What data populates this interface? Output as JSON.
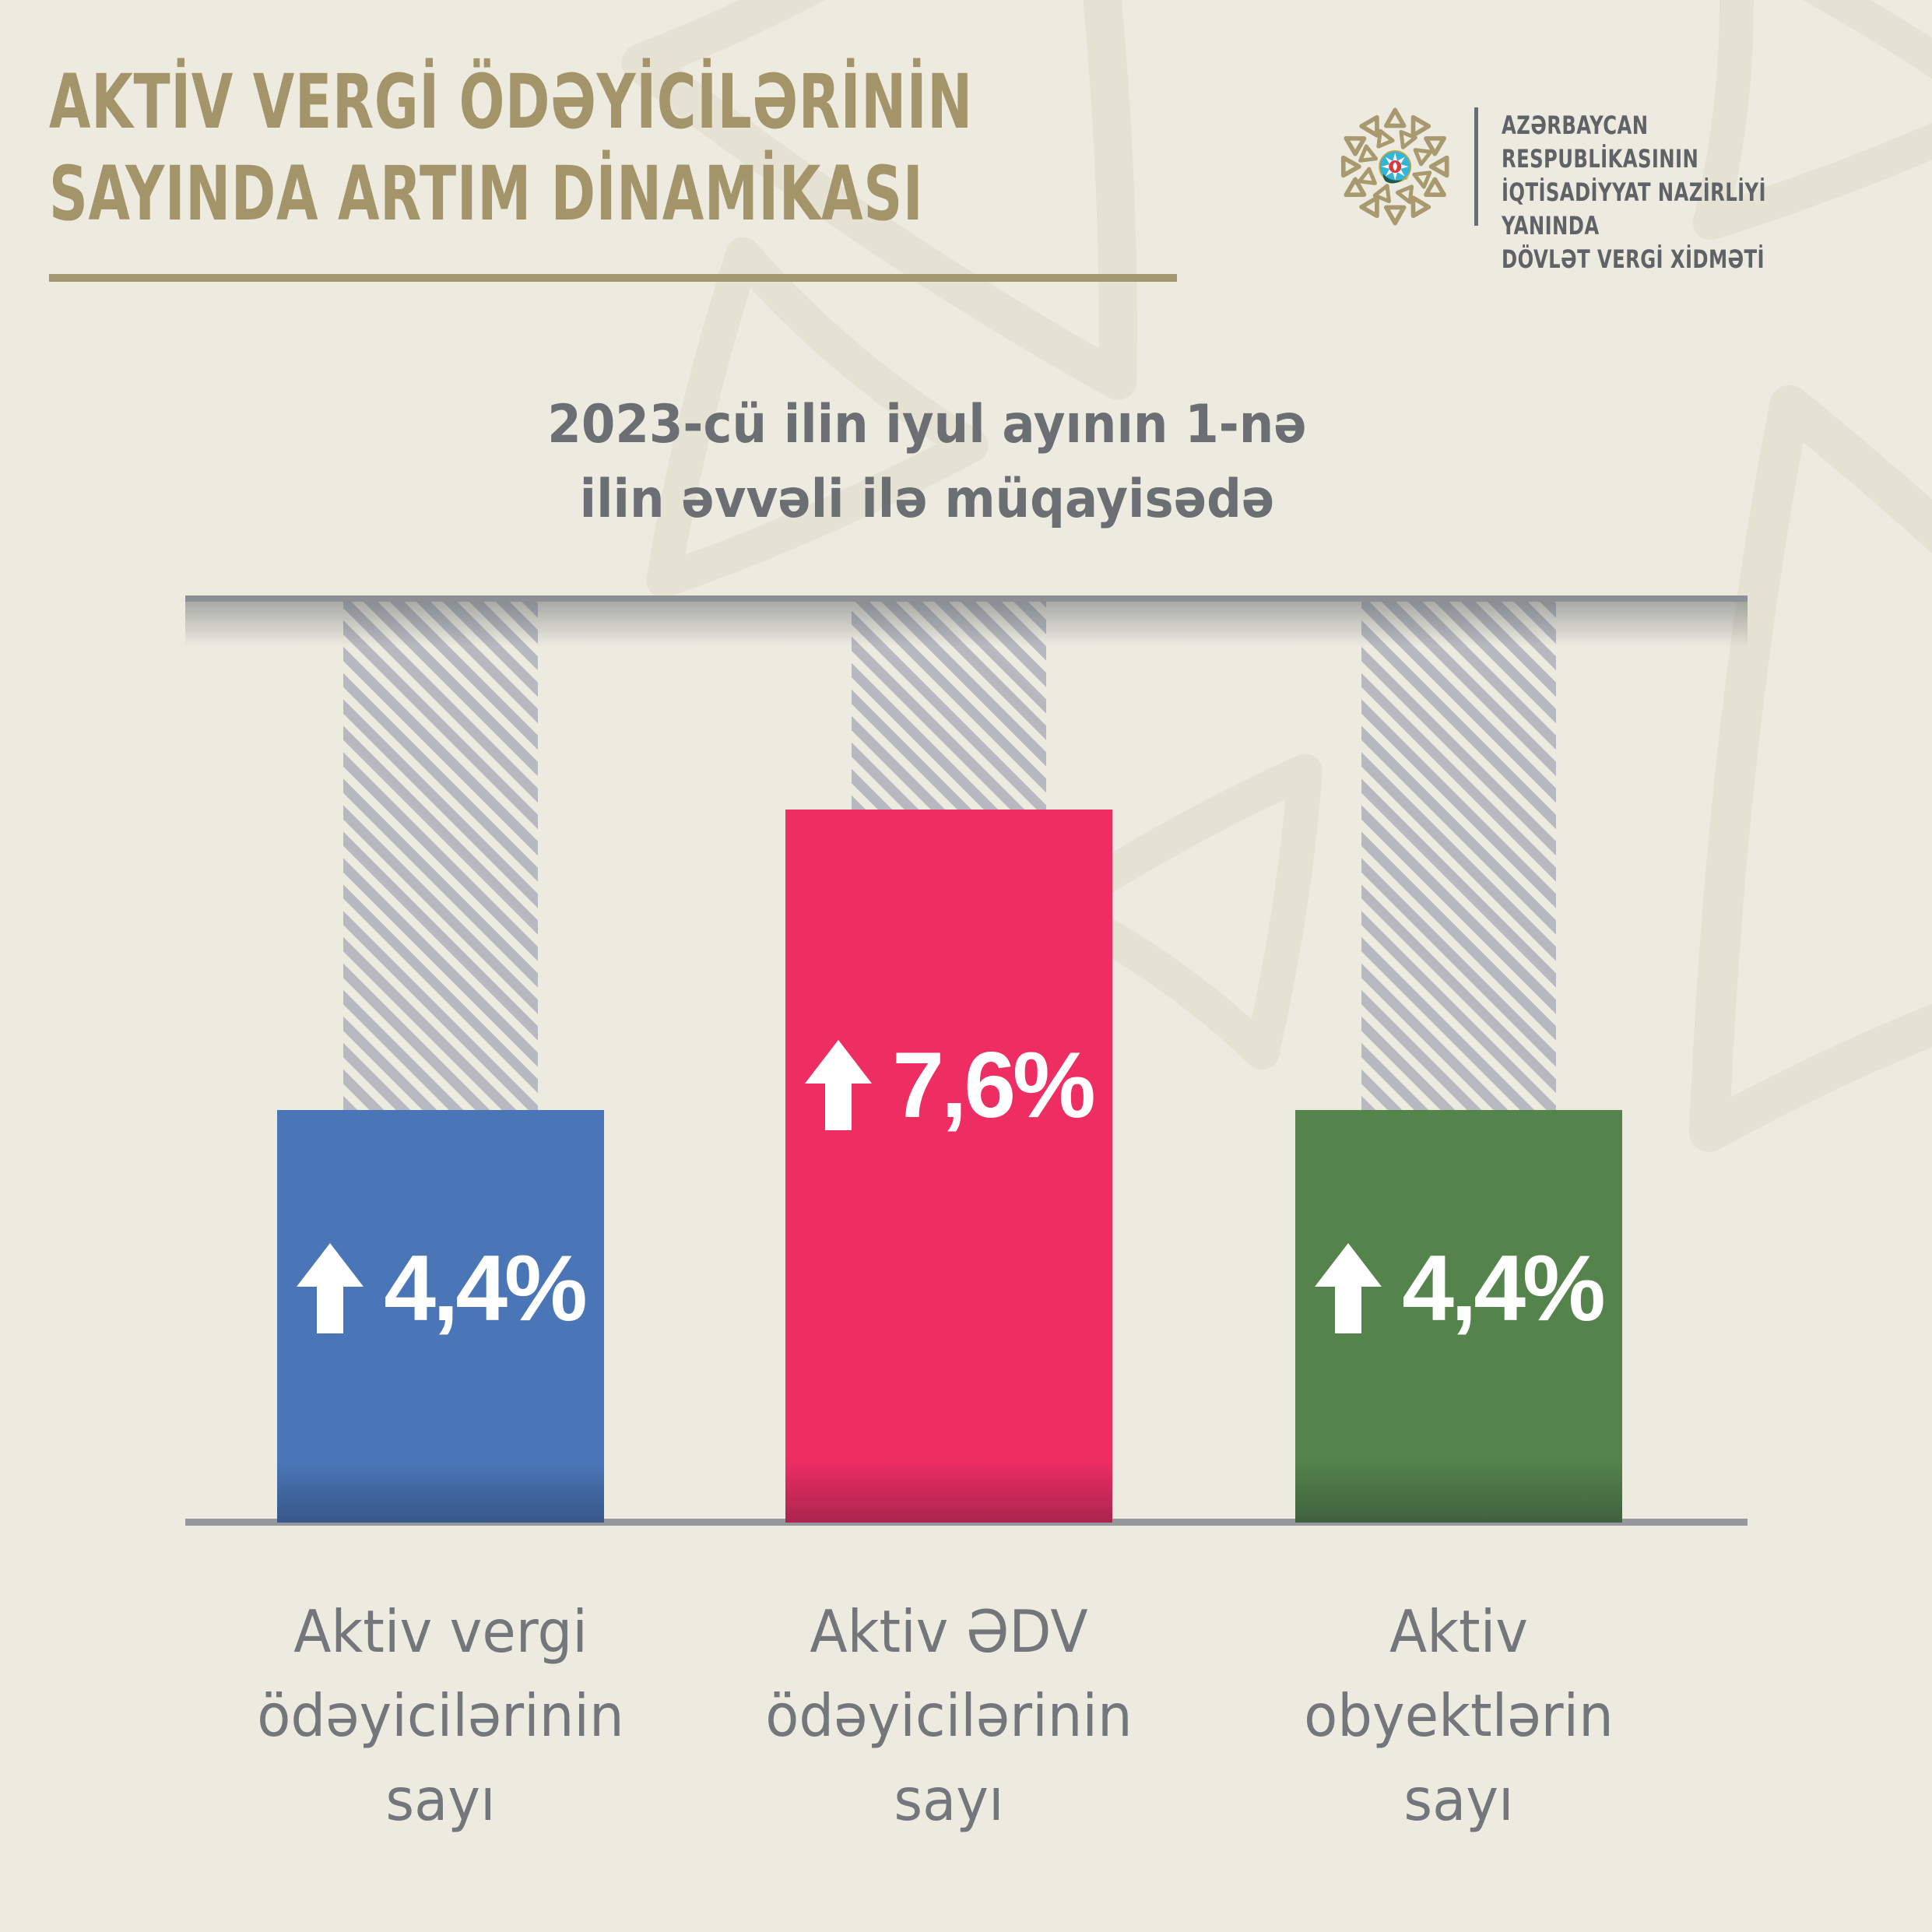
{
  "page": {
    "background": "#edebe0",
    "ornament_color": "#e5e2d4"
  },
  "header": {
    "title": "AKTİV VERGİ ÖDƏYİCİLƏRİNİN\nSAYINDA ARTIM DİNAMİKASI",
    "title_color": "#a39469",
    "brand_lines": "AZƏRBAYCAN RESPUBLİKASININ\nİQTİSADİYYAT NAZİRLİYİ YANINDA\nDÖVLƏT VERGİ XİDMƏTİ"
  },
  "subtitle": "2023-cü ilin iyul ayının 1-nə\nilin əvvəli ilə müqayisədə",
  "chart_data": {
    "type": "bar",
    "title": "AKTİV VERGİ ÖDƏYİCİLƏRİNİN SAYINDA ARTIM DİNAMİKASI",
    "subtitle": "2023-cü ilin iyul ayının 1-nə ilin əvvəli ilə müqayisədə",
    "categories": [
      "Aktiv vergi\nödəyicilərinin\nsayı",
      "Aktiv ƏDV\nödəyicilərinin\nsayı",
      "Aktiv\nobyektlərin\nsayı"
    ],
    "values": [
      4.4,
      7.6,
      4.4
    ],
    "value_labels": [
      "4,4%",
      "7,6%",
      "4,4%"
    ],
    "unit": "%",
    "annotation_icon": "arrow-up",
    "bar_colors": [
      "#4a76b8",
      "#ee2d63",
      "#55834c"
    ],
    "hatch_color": "#b6b9c0",
    "axis_line_color": "#8c9095",
    "grid": false,
    "legend": false
  }
}
